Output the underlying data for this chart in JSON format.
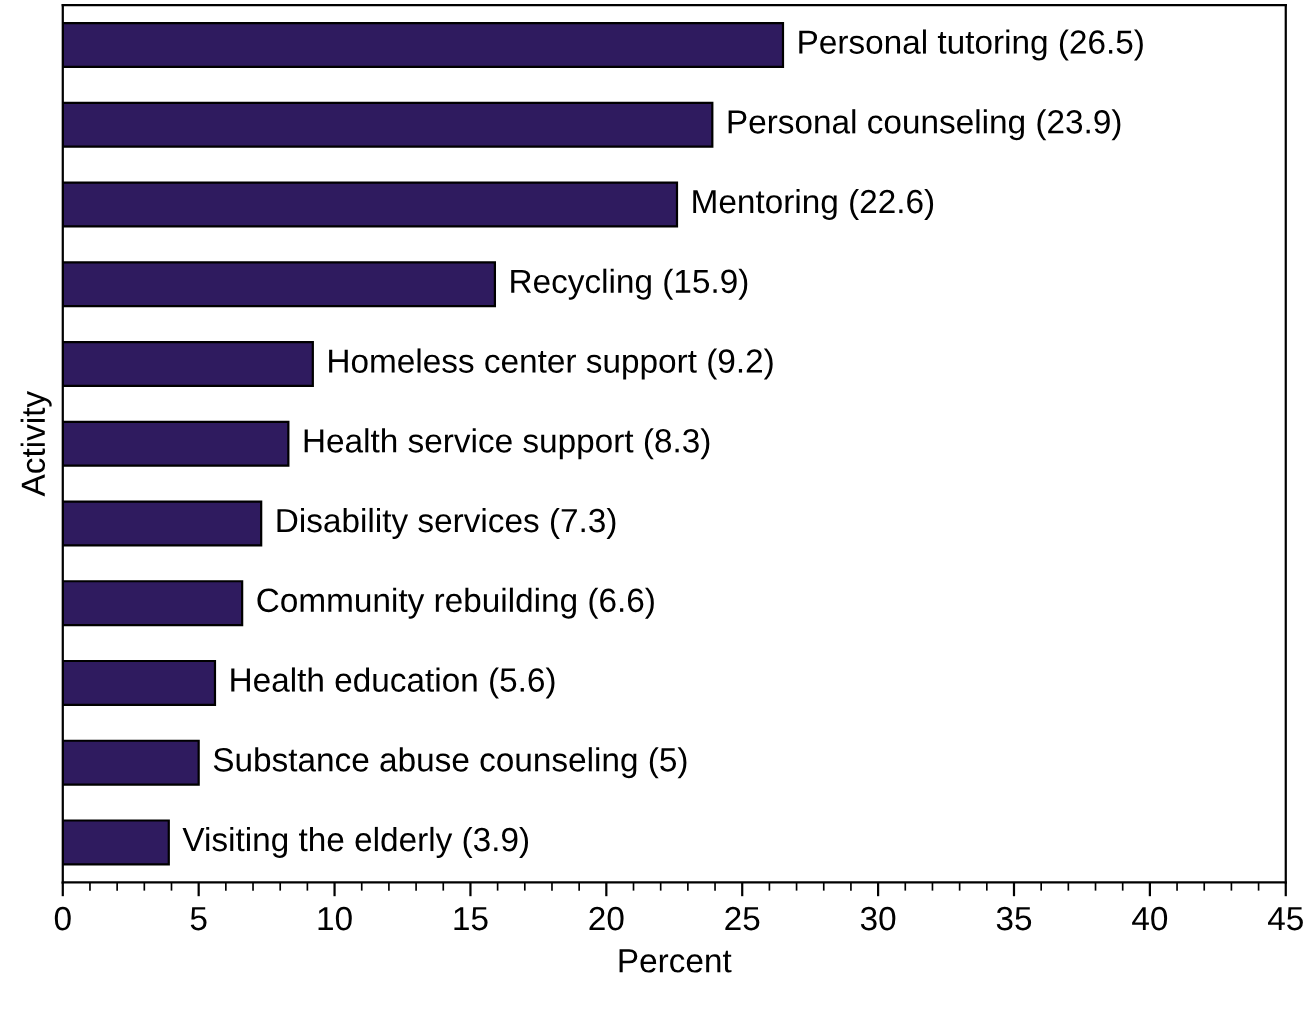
{
  "chart_data": {
    "type": "bar",
    "orientation": "horizontal",
    "xlabel": "Percent",
    "ylabel": "Activity",
    "categories": [
      "Personal tutoring",
      "Personal counseling",
      "Mentoring",
      "Recycling",
      "Homeless center support",
      "Health service support",
      "Disability services",
      "Community rebuilding",
      "Health education",
      "Substance abuse counseling",
      "Visiting the elderly"
    ],
    "values": [
      26.5,
      23.9,
      22.6,
      15.9,
      9.2,
      8.3,
      7.3,
      6.6,
      5.6,
      5,
      3.9
    ],
    "value_labels": [
      "(26.5)",
      "(23.9)",
      "(22.6)",
      "(15.9)",
      "(9.2)",
      "(8.3)",
      "(7.3)",
      "(6.6)",
      "(5.6)",
      "(5)",
      "(3.9)"
    ],
    "color": "#2f1b5f",
    "xlim": [
      0,
      45
    ],
    "xticks": [
      0,
      5,
      10,
      15,
      20,
      25,
      30,
      35,
      40,
      45
    ],
    "tick_labels": "x",
    "grid": false,
    "legend": false
  }
}
